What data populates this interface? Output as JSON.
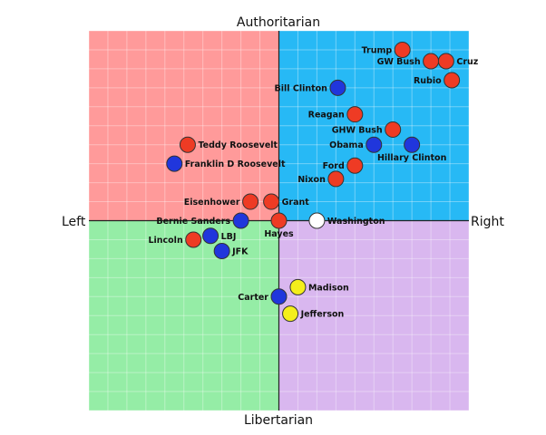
{
  "chart_data": {
    "type": "scatter",
    "title": "",
    "axis_labels": {
      "top": "Authoritarian",
      "bottom": "Libertarian",
      "left": "Left",
      "right": "Right"
    },
    "xlim": [
      -10,
      10
    ],
    "ylim": [
      -10,
      10
    ],
    "grid": true,
    "quadrant_colors": {
      "top_left": "#ff9a9a",
      "top_right": "#27b9f5",
      "bottom_left": "#95eda6",
      "bottom_right": "#d9b7ef"
    },
    "marker_colors": {
      "red": "#ee3b24",
      "blue": "#2036dc",
      "yellow": "#f4ee1c",
      "white": "#ffffff"
    },
    "points": [
      {
        "name": "Trump",
        "x": 6.5,
        "y": 9.0,
        "color": "red",
        "label_side": "left"
      },
      {
        "name": "GW Bush",
        "x": 8.0,
        "y": 8.4,
        "color": "red",
        "label_side": "left"
      },
      {
        "name": "Cruz",
        "x": 8.8,
        "y": 8.4,
        "color": "red",
        "label_side": "right"
      },
      {
        "name": "Rubio",
        "x": 9.1,
        "y": 7.4,
        "color": "red",
        "label_side": "left"
      },
      {
        "name": "Bill Clinton",
        "x": 3.1,
        "y": 7.0,
        "color": "blue",
        "label_side": "left"
      },
      {
        "name": "Reagan",
        "x": 4.0,
        "y": 5.6,
        "color": "red",
        "label_side": "left"
      },
      {
        "name": "GHW Bush",
        "x": 6.0,
        "y": 4.8,
        "color": "red",
        "label_side": "left"
      },
      {
        "name": "Obama",
        "x": 5.0,
        "y": 4.0,
        "color": "blue",
        "label_side": "left"
      },
      {
        "name": "Hillary Clinton",
        "x": 7.0,
        "y": 4.0,
        "color": "blue",
        "label_side": "below"
      },
      {
        "name": "Ford",
        "x": 4.0,
        "y": 2.9,
        "color": "red",
        "label_side": "left"
      },
      {
        "name": "Nixon",
        "x": 3.0,
        "y": 2.2,
        "color": "red",
        "label_side": "left"
      },
      {
        "name": "Teddy Roosevelt",
        "x": -4.8,
        "y": 4.0,
        "color": "red",
        "label_side": "right"
      },
      {
        "name": "Franklin D Roosevelt",
        "x": -5.5,
        "y": 3.0,
        "color": "blue",
        "label_side": "right"
      },
      {
        "name": "Eisenhower",
        "x": -1.5,
        "y": 1.0,
        "color": "red",
        "label_side": "left"
      },
      {
        "name": "Grant",
        "x": -0.4,
        "y": 1.0,
        "color": "red",
        "label_side": "right"
      },
      {
        "name": "Bernie Sanders",
        "x": -2.0,
        "y": 0.0,
        "color": "blue",
        "label_side": "left"
      },
      {
        "name": "Hayes",
        "x": 0.0,
        "y": 0.0,
        "color": "red",
        "label_side": "below"
      },
      {
        "name": "Washington",
        "x": 2.0,
        "y": 0.0,
        "color": "white",
        "label_side": "right"
      },
      {
        "name": "Lincoln",
        "x": -4.5,
        "y": -1.0,
        "color": "red",
        "label_side": "left"
      },
      {
        "name": "LBJ",
        "x": -3.6,
        "y": -0.8,
        "color": "blue",
        "label_side": "right"
      },
      {
        "name": "JFK",
        "x": -3.0,
        "y": -1.6,
        "color": "blue",
        "label_side": "right"
      },
      {
        "name": "Madison",
        "x": 1.0,
        "y": -3.5,
        "color": "yellow",
        "label_side": "right"
      },
      {
        "name": "Carter",
        "x": 0.0,
        "y": -4.0,
        "color": "blue",
        "label_side": "left"
      },
      {
        "name": "Jefferson",
        "x": 0.6,
        "y": -4.9,
        "color": "yellow",
        "label_side": "right"
      }
    ]
  }
}
